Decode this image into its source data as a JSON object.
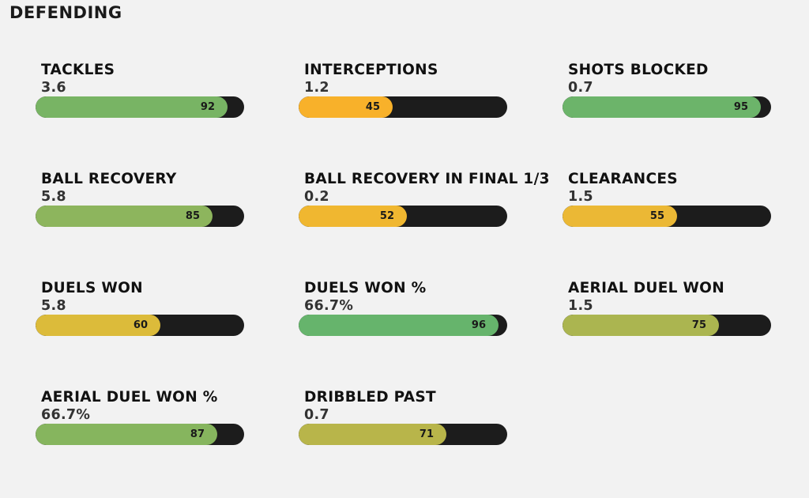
{
  "title": "DEFENDING",
  "chart_data": {
    "type": "bar",
    "title": "DEFENDING",
    "scale_max": 100,
    "metrics": [
      {
        "label": "TACKLES",
        "value": "3.6",
        "percentile": 92,
        "color": "#78b464"
      },
      {
        "label": "INTERCEPTIONS",
        "value": "1.2",
        "percentile": 45,
        "color": "#f8b12a"
      },
      {
        "label": "SHOTS BLOCKED",
        "value": "0.7",
        "percentile": 95,
        "color": "#6cb46a"
      },
      {
        "label": "BALL RECOVERY",
        "value": "5.8",
        "percentile": 85,
        "color": "#8db55d"
      },
      {
        "label": "BALL RECOVERY IN FINAL 1/3",
        "value": "0.2",
        "percentile": 52,
        "color": "#f0b730"
      },
      {
        "label": "CLEARANCES",
        "value": "1.5",
        "percentile": 55,
        "color": "#ebb835"
      },
      {
        "label": "DUELS WON",
        "value": "5.8",
        "percentile": 60,
        "color": "#dcbb3a"
      },
      {
        "label": "DUELS WON %",
        "value": "66.7%",
        "percentile": 96,
        "color": "#66b46c"
      },
      {
        "label": "AERIAL DUEL WON",
        "value": "1.5",
        "percentile": 75,
        "color": "#abb550"
      },
      {
        "label": "AERIAL DUEL WON %",
        "value": "66.7%",
        "percentile": 87,
        "color": "#86b55e"
      },
      {
        "label": "DRIBBLED PAST",
        "value": "0.7",
        "percentile": 71,
        "color": "#b8b54a"
      }
    ]
  }
}
